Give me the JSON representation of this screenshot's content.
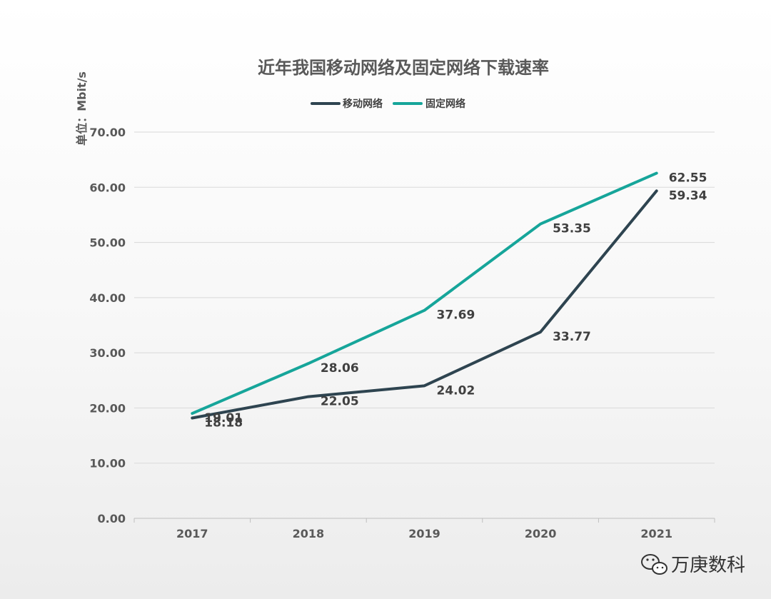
{
  "chart_data": {
    "type": "line",
    "title": "近年我国移动网络及固定网络下载速率",
    "ylabel": "单位：Mbit/s",
    "xlabel": "",
    "categories": [
      "2017",
      "2018",
      "2019",
      "2020",
      "2021"
    ],
    "series": [
      {
        "name": "移动网络",
        "color": "#2e4450",
        "values": [
          18.18,
          22.05,
          24.02,
          33.77,
          59.34
        ]
      },
      {
        "name": "固定网络",
        "color": "#16a59a",
        "values": [
          19.01,
          28.06,
          37.69,
          53.35,
          62.55
        ]
      }
    ],
    "ylim": [
      0,
      70
    ],
    "yticks": [
      "0.00",
      "10.00",
      "20.00",
      "30.00",
      "40.00",
      "50.00",
      "60.00",
      "70.00"
    ],
    "grid": true,
    "legend_position": "top-center"
  },
  "watermark": {
    "text": "万庚数科",
    "icon": "wechat-icon"
  }
}
